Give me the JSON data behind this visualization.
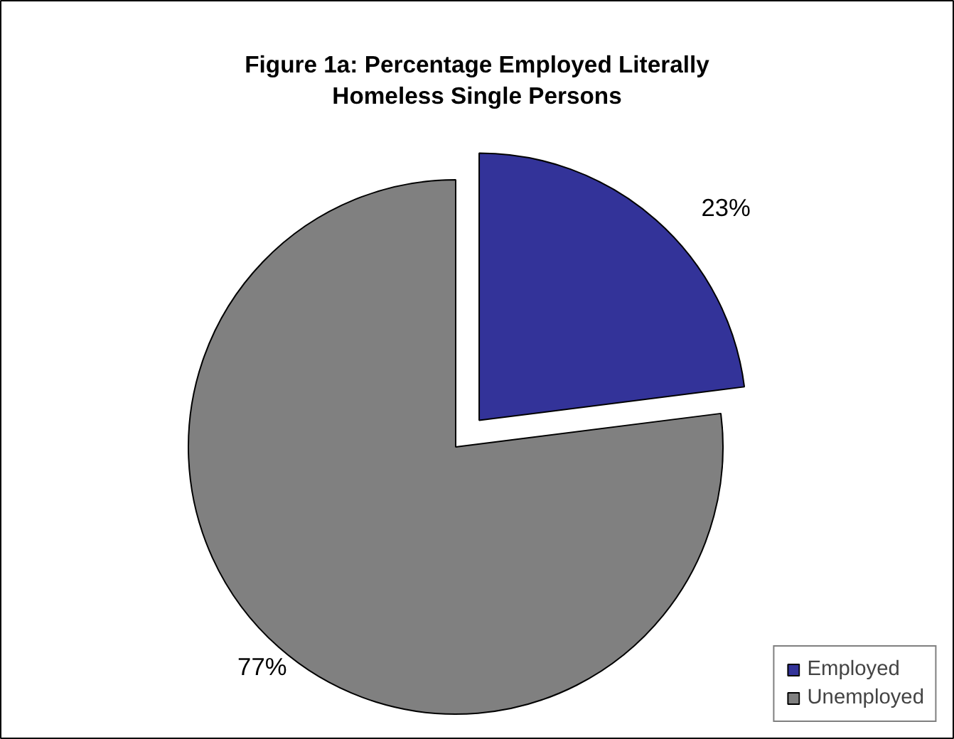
{
  "chart_data": {
    "type": "pie",
    "title": "Figure 1a: Percentage Employed Literally Homeless Single Persons",
    "categories": [
      "Employed",
      "Unemployed"
    ],
    "values": [
      23,
      77
    ],
    "colors": [
      "#333399",
      "#808080"
    ],
    "value_labels": [
      "23%",
      "77%"
    ],
    "legend": "bottom right"
  }
}
